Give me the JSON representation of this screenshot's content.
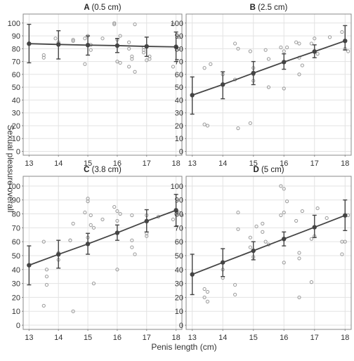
{
  "figure": {
    "ylabel": "Sexual pleasure overall",
    "xlabel": "Penis length (cm)"
  },
  "colors": {
    "frame": "#888888",
    "grid": "#e3e3e3",
    "line": "#444444",
    "point": "#999999"
  },
  "chart_data": [
    {
      "type": "scatter",
      "panel_letter": "A",
      "panel_suffix": "(0.5 cm)",
      "xlim": [
        12.8,
        18.2
      ],
      "ylim": [
        -3,
        107
      ],
      "xticks": [
        13,
        14,
        15,
        16,
        17,
        18
      ],
      "yticks": [
        0,
        10,
        20,
        30,
        40,
        50,
        60,
        70,
        80,
        90,
        100
      ],
      "fit": {
        "x": [
          13,
          14,
          15,
          16,
          17,
          18
        ],
        "y": [
          83.9,
          83.3,
          82.8,
          82.4,
          81.8,
          81.4
        ],
        "err_low": [
          69,
          72,
          75,
          77,
          74,
          70
        ],
        "err_high": [
          99,
          94,
          90,
          88,
          89,
          93
        ]
      },
      "points": [
        [
          13.5,
          75
        ],
        [
          13.5,
          73
        ],
        [
          13.9,
          88
        ],
        [
          14.0,
          85
        ],
        [
          14.5,
          87
        ],
        [
          14.5,
          86
        ],
        [
          14.9,
          88
        ],
        [
          14.9,
          68
        ],
        [
          15.0,
          90
        ],
        [
          15.1,
          79
        ],
        [
          15.1,
          83
        ],
        [
          15.5,
          88
        ],
        [
          15.9,
          99
        ],
        [
          15.9,
          100
        ],
        [
          16.0,
          87
        ],
        [
          16.0,
          70
        ],
        [
          16.1,
          69
        ],
        [
          16.1,
          90
        ],
        [
          16.4,
          85
        ],
        [
          16.4,
          80
        ],
        [
          16.4,
          66
        ],
        [
          16.5,
          74
        ],
        [
          16.5,
          72
        ],
        [
          16.6,
          99
        ],
        [
          16.6,
          62
        ],
        [
          16.9,
          81
        ],
        [
          16.9,
          79
        ],
        [
          16.9,
          77
        ],
        [
          17.0,
          71
        ],
        [
          17.1,
          74
        ],
        [
          17.1,
          72
        ],
        [
          17.9,
          99
        ],
        [
          18.0,
          82
        ],
        [
          18.1,
          89
        ],
        [
          18.1,
          80
        ],
        [
          17.9,
          66
        ]
      ]
    },
    {
      "type": "scatter",
      "panel_letter": "B",
      "panel_suffix": "(2.5 cm)",
      "xlim": [
        12.8,
        18.2
      ],
      "ylim": [
        -3,
        107
      ],
      "xticks": [
        13,
        14,
        15,
        16,
        17,
        18
      ],
      "yticks": [
        0,
        10,
        20,
        30,
        40,
        50,
        60,
        70,
        80,
        90,
        100
      ],
      "fit": {
        "x": [
          13,
          14,
          15,
          16,
          17,
          18
        ],
        "y": [
          43.8,
          52.1,
          61.0,
          69.6,
          77.8,
          86.1
        ],
        "err_low": [
          29,
          41,
          52,
          64,
          73,
          79
        ],
        "err_high": [
          58,
          62,
          70,
          76,
          83,
          98
        ]
      },
      "points": [
        [
          13.4,
          65
        ],
        [
          13.4,
          21
        ],
        [
          13.5,
          20
        ],
        [
          13.6,
          68
        ],
        [
          14.0,
          60
        ],
        [
          14.0,
          52
        ],
        [
          14.4,
          56
        ],
        [
          14.4,
          84
        ],
        [
          14.5,
          80
        ],
        [
          14.5,
          18
        ],
        [
          14.9,
          22
        ],
        [
          14.9,
          78
        ],
        [
          15.0,
          60
        ],
        [
          15.0,
          55
        ],
        [
          15.0,
          65
        ],
        [
          15.4,
          79
        ],
        [
          15.5,
          72
        ],
        [
          15.5,
          50
        ],
        [
          15.9,
          81
        ],
        [
          16.0,
          78
        ],
        [
          16.0,
          49
        ],
        [
          16.1,
          81
        ],
        [
          16.4,
          85
        ],
        [
          16.5,
          84
        ],
        [
          16.5,
          73
        ],
        [
          16.6,
          67
        ],
        [
          16.5,
          60
        ],
        [
          16.9,
          84
        ],
        [
          17.0,
          88
        ],
        [
          17.1,
          76
        ],
        [
          17.5,
          89
        ],
        [
          17.9,
          93
        ],
        [
          18.0,
          80
        ],
        [
          18.1,
          78
        ]
      ]
    },
    {
      "type": "scatter",
      "panel_letter": "C",
      "panel_suffix": "(3.8 cm)",
      "xlim": [
        12.8,
        18.2
      ],
      "ylim": [
        -3,
        107
      ],
      "xticks": [
        13,
        14,
        15,
        16,
        17,
        18
      ],
      "yticks": [
        0,
        10,
        20,
        30,
        40,
        50,
        60,
        70,
        80,
        90,
        100
      ],
      "fit": {
        "x": [
          13,
          14,
          15,
          16,
          17,
          18
        ],
        "y": [
          43.1,
          50.9,
          58.4,
          66.4,
          74.8,
          82.6
        ],
        "err_low": [
          29,
          41,
          51,
          61,
          67,
          71
        ],
        "err_high": [
          57,
          61,
          66,
          72,
          83,
          94
        ]
      },
      "points": [
        [
          13.5,
          14
        ],
        [
          13.5,
          60
        ],
        [
          13.6,
          40
        ],
        [
          13.6,
          35
        ],
        [
          13.6,
          29
        ],
        [
          14.0,
          52
        ],
        [
          14.0,
          47
        ],
        [
          14.4,
          61
        ],
        [
          14.4,
          61
        ],
        [
          14.5,
          73
        ],
        [
          14.5,
          10
        ],
        [
          14.9,
          81
        ],
        [
          15.0,
          91
        ],
        [
          15.0,
          89
        ],
        [
          15.1,
          79
        ],
        [
          15.1,
          72
        ],
        [
          15.0,
          63
        ],
        [
          15.2,
          70
        ],
        [
          15.2,
          30
        ],
        [
          15.5,
          76
        ],
        [
          15.9,
          85
        ],
        [
          16.0,
          82
        ],
        [
          16.0,
          40
        ],
        [
          16.1,
          80
        ],
        [
          16.0,
          75
        ],
        [
          16.5,
          79
        ],
        [
          16.5,
          61
        ],
        [
          16.5,
          56
        ],
        [
          16.6,
          51
        ],
        [
          17.0,
          79
        ],
        [
          17.0,
          66
        ],
        [
          17.0,
          64
        ],
        [
          17.4,
          78
        ],
        [
          17.9,
          76
        ],
        [
          18.0,
          80
        ],
        [
          18.1,
          81
        ],
        [
          18.2,
          79
        ]
      ]
    },
    {
      "type": "scatter",
      "panel_letter": "D",
      "panel_suffix": "(5 cm)",
      "xlim": [
        12.8,
        18.2
      ],
      "ylim": [
        -3,
        107
      ],
      "xticks": [
        13,
        14,
        15,
        16,
        17,
        18
      ],
      "yticks": [
        0,
        10,
        20,
        30,
        40,
        50,
        60,
        70,
        80,
        90,
        100
      ],
      "fit": {
        "x": [
          13,
          14,
          15,
          16,
          17,
          18
        ],
        "y": [
          36.5,
          45.1,
          53.5,
          62.0,
          70.4,
          78.9
        ],
        "err_low": [
          22,
          35,
          47,
          57,
          63,
          68
        ],
        "err_high": [
          51,
          55,
          60,
          67,
          79,
          90
        ]
      },
      "points": [
        [
          13.4,
          26
        ],
        [
          13.4,
          20
        ],
        [
          13.5,
          24
        ],
        [
          13.5,
          17
        ],
        [
          14.0,
          40
        ],
        [
          14.0,
          34
        ],
        [
          14.4,
          29
        ],
        [
          14.4,
          22
        ],
        [
          14.5,
          69
        ],
        [
          14.5,
          81
        ],
        [
          14.9,
          56
        ],
        [
          14.9,
          63
        ],
        [
          15.0,
          49
        ],
        [
          15.1,
          71
        ],
        [
          15.3,
          67
        ],
        [
          15.3,
          73
        ],
        [
          15.4,
          60
        ],
        [
          15.5,
          58
        ],
        [
          15.9,
          79
        ],
        [
          15.9,
          100
        ],
        [
          16.0,
          98
        ],
        [
          16.0,
          81
        ],
        [
          16.1,
          89
        ],
        [
          16.0,
          45
        ],
        [
          16.4,
          75
        ],
        [
          16.5,
          52
        ],
        [
          16.5,
          48
        ],
        [
          16.5,
          20
        ],
        [
          16.6,
          82
        ],
        [
          16.9,
          31
        ],
        [
          16.9,
          62
        ],
        [
          17.0,
          64
        ],
        [
          17.1,
          84
        ],
        [
          17.4,
          77
        ],
        [
          17.9,
          60
        ],
        [
          18.0,
          60
        ],
        [
          17.9,
          51
        ],
        [
          18.1,
          79
        ]
      ]
    }
  ]
}
